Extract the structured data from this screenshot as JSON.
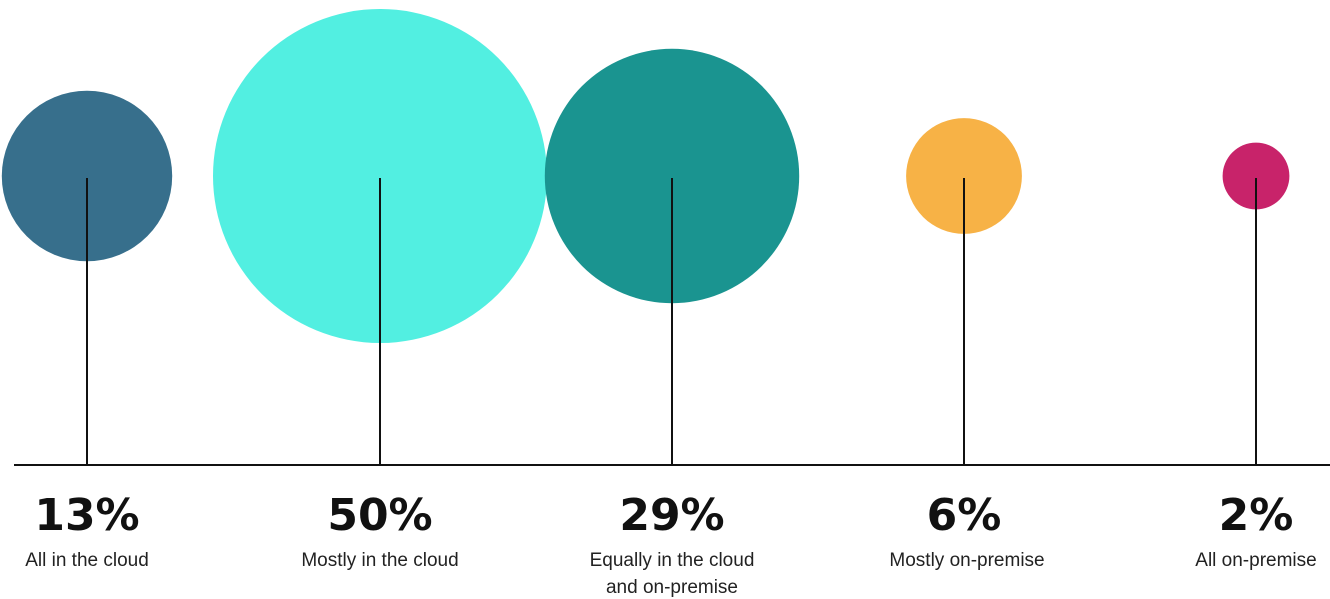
{
  "chart_data": {
    "type": "bubble",
    "categories": [
      "All in the cloud",
      "Mostly in the cloud",
      "Equally in the cloud and on-premise",
      "Mostly on-premise",
      "All on-premise"
    ],
    "labels": [
      [
        "All in the cloud"
      ],
      [
        "Mostly in the cloud"
      ],
      [
        "Equally in the cloud",
        "and on-premise"
      ],
      [
        "Mostly on-premise"
      ],
      [
        "All on-premise"
      ]
    ],
    "value_labels": [
      "13%",
      "50%",
      "29%",
      "6%",
      "2%"
    ],
    "values": [
      13,
      50,
      29,
      6,
      2
    ],
    "unit": "%",
    "colors": [
      "#376f8c",
      "#52efe1",
      "#1a9490",
      "#f7b246",
      "#c8236a"
    ],
    "grid": false,
    "legend": "none"
  }
}
